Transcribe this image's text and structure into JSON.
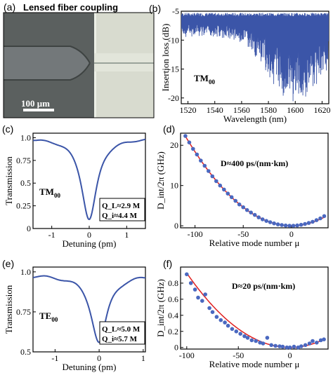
{
  "figure": {
    "panel_a": {
      "label": "(a)",
      "caption": "Lensed fiber coupling",
      "scalebar_label": "100 μm"
    },
    "panel_b": {
      "label": "(b)",
      "annotation_base": "TM",
      "annotation_sub": "00"
    },
    "panel_c": {
      "label": "(c)",
      "annotation_base": "TM",
      "annotation_sub": "00",
      "q_l": "Q_L≈2.9 M",
      "q_i": "Q_i≈4.4 M"
    },
    "panel_d": {
      "label": "(d)",
      "annotation": "D≈400 ps/(nm·km)"
    },
    "panel_e": {
      "label": "(e)",
      "annotation_base": "TE",
      "annotation_sub": "00",
      "q_l": "Q_L≈5.0 M",
      "q_i": "Q_i≈5.7 M"
    },
    "panel_f": {
      "label": "(f)",
      "annotation": "D≈20 ps/(nm·km)"
    }
  },
  "colors": {
    "blue": "#3b55a8",
    "red": "#e02020",
    "points": "#4a68c0",
    "microscope_gray": "#5a5f5e",
    "chip": "#d9dccf"
  },
  "chart_data": [
    {
      "id": "b",
      "type": "line",
      "xlabel": "Wavelength (nm)",
      "ylabel": "Insertion loss (dB)",
      "xlim": [
        1515,
        1625
      ],
      "ylim": [
        -21,
        -5
      ],
      "xticks": [
        1520,
        1540,
        1560,
        1580,
        1600,
        1620
      ],
      "yticks": [
        -5,
        -10,
        -15,
        -20
      ],
      "baseline": -5.6,
      "resonance_depth_max": 15.0
    },
    {
      "id": "c",
      "type": "line",
      "xlabel": "Detuning (pm)",
      "ylabel": "Transmission",
      "xlim": [
        -1.5,
        1.5
      ],
      "ylim": [
        0.0,
        1.05
      ],
      "xticks": [
        -1,
        0,
        1
      ],
      "yticks": [
        0.0,
        0.25,
        0.5,
        0.75,
        1.0
      ],
      "yticklabels": [
        "0",
        "0.25",
        "0.5",
        "0.75",
        "1.0"
      ],
      "baseline": 1.0,
      "dip_min": 0.1,
      "half_width_pm": 0.25
    },
    {
      "id": "d",
      "type": "scatter",
      "xlabel": "Relative mode number μ",
      "ylabel": "D_int/2π (GHz)",
      "xlim": [
        -115,
        38
      ],
      "ylim": [
        -0.5,
        23
      ],
      "xticks": [
        -100,
        -50,
        0
      ],
      "yticks": [
        0,
        10,
        20
      ],
      "points": [
        {
          "x": -110,
          "y": 22.3
        },
        {
          "x": -106,
          "y": 20.7
        },
        {
          "x": -102,
          "y": 19.1
        },
        {
          "x": -98,
          "y": 17.7
        },
        {
          "x": -94,
          "y": 16.2
        },
        {
          "x": -90,
          "y": 14.9
        },
        {
          "x": -86,
          "y": 13.6
        },
        {
          "x": -82,
          "y": 12.3
        },
        {
          "x": -78,
          "y": 11.1
        },
        {
          "x": -74,
          "y": 10.0
        },
        {
          "x": -70,
          "y": 9.0
        },
        {
          "x": -66,
          "y": 8.0
        },
        {
          "x": -62,
          "y": 7.1
        },
        {
          "x": -58,
          "y": 6.2
        },
        {
          "x": -54,
          "y": 5.3
        },
        {
          "x": -50,
          "y": 4.6
        },
        {
          "x": -46,
          "y": 3.9
        },
        {
          "x": -42,
          "y": 3.3
        },
        {
          "x": -38,
          "y": 2.7
        },
        {
          "x": -34,
          "y": 2.1
        },
        {
          "x": -30,
          "y": 1.6
        },
        {
          "x": -26,
          "y": 1.2
        },
        {
          "x": -22,
          "y": 0.9
        },
        {
          "x": -18,
          "y": 0.6
        },
        {
          "x": -14,
          "y": 0.35
        },
        {
          "x": -10,
          "y": 0.2
        },
        {
          "x": -6,
          "y": 0.08
        },
        {
          "x": -2,
          "y": 0.02
        },
        {
          "x": 2,
          "y": 0.03
        },
        {
          "x": 6,
          "y": 0.1
        },
        {
          "x": 10,
          "y": 0.25
        },
        {
          "x": 14,
          "y": 0.45
        },
        {
          "x": 18,
          "y": 0.7
        },
        {
          "x": 22,
          "y": 1.0
        },
        {
          "x": 26,
          "y": 1.4
        },
        {
          "x": 30,
          "y": 1.85
        },
        {
          "x": 34,
          "y": 2.4
        }
      ],
      "fit": {
        "a": 0.00184,
        "b": 0.0
      }
    },
    {
      "id": "e",
      "type": "line",
      "xlabel": "Detuning (pm)",
      "ylabel": "Transmission",
      "xlim": [
        -1.5,
        1.05
      ],
      "ylim": [
        0.5,
        1.03
      ],
      "xticks": [
        -1,
        0,
        1
      ],
      "yticks": [
        0.5,
        0.75,
        1.0
      ],
      "yticklabels": [
        "0.5",
        "0.75",
        "1.0"
      ],
      "baseline": 0.98,
      "dip_min": 0.56,
      "half_width_pm": 0.22
    },
    {
      "id": "f",
      "type": "scatter",
      "xlabel": "Relative mode number μ",
      "ylabel": "D_int/2π (GHz)",
      "xlim": [
        -106,
        37
      ],
      "ylim": [
        -0.02,
        1.0
      ],
      "xticks": [
        -100,
        -50,
        0
      ],
      "yticks": [
        0,
        0.2,
        0.4,
        0.6,
        0.8
      ],
      "yticklabels": [
        "0",
        "0.2",
        "0.4",
        "0.6",
        "0.8"
      ],
      "points": [
        {
          "x": -100,
          "y": 0.91
        },
        {
          "x": -96,
          "y": 0.8
        },
        {
          "x": -92,
          "y": 0.72
        },
        {
          "x": -89,
          "y": 0.62
        },
        {
          "x": -85,
          "y": 0.58
        },
        {
          "x": -82,
          "y": 0.66
        },
        {
          "x": -78,
          "y": 0.49
        },
        {
          "x": -75,
          "y": 0.44
        },
        {
          "x": -71,
          "y": 0.38
        },
        {
          "x": -67,
          "y": 0.34
        },
        {
          "x": -63,
          "y": 0.31
        },
        {
          "x": -60,
          "y": 0.27
        },
        {
          "x": -56,
          "y": 0.23
        },
        {
          "x": -52,
          "y": 0.2
        },
        {
          "x": -48,
          "y": 0.17
        },
        {
          "x": -44,
          "y": 0.14
        },
        {
          "x": -41,
          "y": 0.12
        },
        {
          "x": -37,
          "y": 0.09
        },
        {
          "x": -33,
          "y": 0.08
        },
        {
          "x": -29,
          "y": 0.06
        },
        {
          "x": -26,
          "y": 0.05
        },
        {
          "x": -22,
          "y": 0.12
        },
        {
          "x": -18,
          "y": 0.03
        },
        {
          "x": -14,
          "y": 0.02
        },
        {
          "x": -10,
          "y": 0.015
        },
        {
          "x": -7,
          "y": 0.01
        },
        {
          "x": -3,
          "y": 0.0
        },
        {
          "x": 0,
          "y": 0.0
        },
        {
          "x": 4,
          "y": 0.01
        },
        {
          "x": 8,
          "y": 0.0
        },
        {
          "x": 11,
          "y": 0.015
        },
        {
          "x": 15,
          "y": 0.03
        },
        {
          "x": 19,
          "y": 0.05
        },
        {
          "x": 22,
          "y": 0.08
        },
        {
          "x": 26,
          "y": 0.06
        },
        {
          "x": 30,
          "y": 0.09
        },
        {
          "x": 33,
          "y": 0.1
        }
      ],
      "fit": {
        "a": 9.25e-05,
        "b": 0.0
      }
    }
  ]
}
